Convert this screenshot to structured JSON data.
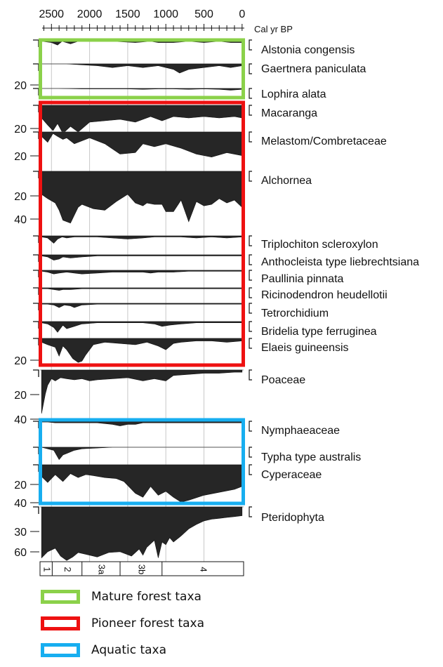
{
  "chart_data": {
    "type": "area",
    "title": "",
    "xlabel": "Cal yr BP",
    "xlim": [
      2650,
      -20
    ],
    "x_ticks": [
      "2500",
      "2000",
      "1500",
      "1000",
      "500",
      "0"
    ],
    "x_tick_values": [
      2500,
      2000,
      1500,
      1000,
      500,
      0
    ],
    "zones": [
      "1",
      "2",
      "3a",
      "3b",
      "4"
    ],
    "zone_boundaries": [
      2490,
      2100,
      1600,
      1050
    ],
    "series": [
      {
        "name": "Alstonia congensis",
        "ticks": [],
        "max": 10,
        "x": [
          2630,
          2500,
          2420,
          2360,
          2250,
          2150,
          2000,
          1700,
          1400,
          1200,
          1100,
          900,
          700,
          500,
          300,
          150,
          0
        ],
        "values": [
          1,
          2,
          4,
          1,
          3,
          1,
          1,
          1,
          2,
          1,
          2,
          2,
          1,
          2,
          1,
          2,
          2
        ]
      },
      {
        "name": "Gaertnera paniculata",
        "ticks": [],
        "max": 10,
        "x": [
          2630,
          2500,
          2300,
          2100,
          1900,
          1700,
          1500,
          1300,
          1100,
          900,
          820,
          700,
          500,
          300,
          150,
          0
        ],
        "values": [
          0,
          0,
          0,
          0.5,
          1,
          2,
          1,
          2,
          1,
          3,
          5,
          3,
          2,
          1,
          2,
          1
        ]
      },
      {
        "name": "Lophira alata",
        "ticks": [
          "20"
        ],
        "max": 20,
        "x": [
          2630,
          2400,
          2100,
          1900,
          1700,
          1500,
          1300,
          1100,
          900,
          700,
          500,
          300,
          150,
          0
        ],
        "values": [
          0,
          0,
          1,
          1,
          1,
          1,
          2,
          1,
          1,
          2,
          1,
          2,
          4,
          2
        ]
      },
      {
        "name": "Macaranga",
        "ticks": [
          "20"
        ],
        "max": 20,
        "x": [
          2630,
          2550,
          2480,
          2420,
          2350,
          2250,
          2150,
          2000,
          1800,
          1600,
          1400,
          1200,
          1050,
          900,
          700,
          500,
          300,
          100,
          0
        ],
        "values": [
          9,
          14,
          18,
          13,
          20,
          15,
          19,
          12,
          11,
          10,
          12,
          8,
          11,
          8,
          9,
          8,
          9,
          8,
          9
        ]
      },
      {
        "name": "Melastom/Combretaceae",
        "ticks": [
          "20"
        ],
        "max": 20,
        "x": [
          2630,
          2550,
          2480,
          2420,
          2350,
          2300,
          2200,
          2100,
          2000,
          1800,
          1600,
          1400,
          1300,
          1150,
          1000,
          800,
          600,
          400,
          200,
          0
        ],
        "values": [
          3,
          7,
          1,
          3,
          5,
          4,
          8,
          6,
          4,
          8,
          15,
          14,
          8,
          10,
          8,
          11,
          15,
          17,
          14,
          16
        ]
      },
      {
        "name": "Alchornea",
        "ticks": [
          "20",
          "40"
        ],
        "max": 40,
        "x": [
          2630,
          2550,
          2450,
          2400,
          2350,
          2250,
          2150,
          2100,
          1950,
          1800,
          1650,
          1500,
          1400,
          1300,
          1250,
          1150,
          1050,
          1000,
          900,
          800,
          700,
          600,
          500,
          400,
          300,
          200,
          100,
          0
        ],
        "values": [
          16,
          19,
          22,
          27,
          34,
          36,
          25,
          23,
          26,
          27,
          21,
          16,
          22,
          24,
          22,
          23,
          23,
          28,
          28,
          20,
          35,
          21,
          24,
          23,
          19,
          22,
          20,
          25
        ]
      },
      {
        "name": "Triplochiton scleroxylon",
        "ticks": [],
        "max": 10,
        "x": [
          2630,
          2550,
          2470,
          2420,
          2360,
          2300,
          2200,
          2100,
          1900,
          1700,
          1500,
          1300,
          1150,
          1000,
          800,
          600,
          400,
          200,
          0
        ],
        "values": [
          1,
          2,
          7,
          3,
          1,
          2,
          1,
          1,
          1,
          2,
          3,
          2,
          1,
          1,
          1,
          2,
          1,
          2,
          1
        ]
      },
      {
        "name": "Anthocleista type liebrechtsiana",
        "ticks": [],
        "max": 10,
        "x": [
          2630,
          2550,
          2470,
          2400,
          2350,
          2250,
          2100,
          1900,
          1700,
          1500,
          1300,
          1100,
          900,
          700,
          500,
          300,
          100,
          0
        ],
        "values": [
          1,
          2,
          5,
          4,
          2,
          3,
          2,
          1,
          1,
          1,
          1,
          1,
          1,
          1,
          1,
          1,
          1,
          1
        ]
      },
      {
        "name": "Paullinia pinnata",
        "ticks": [],
        "max": 10,
        "x": [
          2630,
          2550,
          2470,
          2400,
          2300,
          2200,
          2100,
          1900,
          1700,
          1500,
          1300,
          1200,
          1100,
          900,
          700,
          500,
          300,
          100,
          0
        ],
        "values": [
          1,
          2,
          4,
          3,
          2,
          3,
          4,
          3,
          2,
          2,
          2,
          3,
          2,
          2,
          1,
          1,
          1,
          1,
          1
        ]
      },
      {
        "name": "Ricinodendron heudellotii",
        "ticks": [],
        "max": 10,
        "x": [
          2630,
          2550,
          2470,
          2400,
          2350,
          2250,
          2100,
          1900,
          1700,
          1500,
          1300,
          1100,
          900,
          700,
          500,
          300,
          100,
          0
        ],
        "values": [
          1,
          1,
          2,
          3,
          2,
          2,
          1,
          1,
          1,
          1,
          1,
          1,
          1,
          1,
          1,
          1,
          1,
          1
        ]
      },
      {
        "name": "Tetrorchidium",
        "ticks": [],
        "max": 10,
        "x": [
          2630,
          2550,
          2470,
          2400,
          2330,
          2250,
          2200,
          2100,
          1900,
          1700,
          1500,
          1300,
          1100,
          900,
          700,
          500,
          300,
          100,
          0
        ],
        "values": [
          1,
          1,
          2,
          5,
          2,
          3,
          5,
          2,
          1,
          1,
          1,
          1,
          1,
          1,
          1,
          1,
          1,
          1,
          1
        ]
      },
      {
        "name": "Bridelia type ferruginea",
        "ticks": [],
        "max": 10,
        "x": [
          2630,
          2550,
          2470,
          2420,
          2350,
          2300,
          2200,
          2100,
          1900,
          1700,
          1500,
          1300,
          1150,
          1050,
          950,
          800,
          600,
          400,
          200,
          0
        ],
        "values": [
          1,
          2,
          5,
          9,
          3,
          6,
          4,
          2,
          1,
          1,
          1,
          1,
          2,
          4,
          3,
          2,
          1,
          1,
          1,
          1
        ]
      },
      {
        "name": "Elaeis guineensis",
        "ticks": [
          "20"
        ],
        "max": 20,
        "x": [
          2630,
          2550,
          2450,
          2400,
          2350,
          2300,
          2220,
          2150,
          2100,
          2050,
          1950,
          1800,
          1600,
          1400,
          1250,
          1100,
          1000,
          900,
          800,
          600,
          400,
          200,
          0
        ],
        "values": [
          3,
          5,
          7,
          14,
          6,
          9,
          16,
          19,
          18,
          13,
          5,
          3,
          4,
          5,
          3,
          6,
          9,
          4,
          3,
          2,
          2,
          3,
          2
        ]
      },
      {
        "name": "Poaceae",
        "ticks": [
          "20",
          "40"
        ],
        "max": 40,
        "x": [
          2630,
          2580,
          2550,
          2500,
          2450,
          2380,
          2300,
          2200,
          2100,
          2000,
          1900,
          1700,
          1500,
          1300,
          1150,
          1000,
          900,
          700,
          500,
          300,
          100,
          0
        ],
        "values": [
          40,
          22,
          14,
          8,
          10,
          7,
          8,
          9,
          8,
          10,
          9,
          8,
          7,
          10,
          8,
          10,
          5,
          4,
          3,
          3,
          2,
          2
        ]
      },
      {
        "name": "Nymphaeaceae",
        "ticks": [],
        "max": 10,
        "x": [
          2630,
          2550,
          2450,
          2350,
          2250,
          2100,
          1900,
          1700,
          1600,
          1500,
          1400,
          1300,
          1200,
          1100,
          1000,
          800,
          600,
          400,
          200,
          0
        ],
        "values": [
          0.5,
          0.5,
          1,
          1,
          1,
          1,
          1,
          2,
          3,
          2,
          2,
          1,
          1,
          1,
          1,
          1,
          1,
          1,
          1,
          1
        ]
      },
      {
        "name": "Typha type australis",
        "ticks": [],
        "max": 10,
        "x": [
          2630,
          2550,
          2470,
          2400,
          2350,
          2300,
          2200,
          2100,
          1900,
          1700,
          1500,
          1300,
          1100,
          900,
          700,
          500,
          300,
          100,
          0
        ],
        "values": [
          0,
          1,
          2,
          8,
          5,
          4,
          2,
          1,
          0.5,
          0,
          0,
          0,
          0,
          0,
          0,
          0,
          0,
          0,
          0
        ]
      },
      {
        "name": "Cyperaceae",
        "ticks": [
          "20",
          "40"
        ],
        "max": 40,
        "x": [
          2630,
          2550,
          2450,
          2350,
          2250,
          2150,
          2050,
          1950,
          1800,
          1650,
          1550,
          1400,
          1300,
          1200,
          1100,
          1000,
          900,
          800,
          700,
          500,
          300,
          100,
          0
        ],
        "values": [
          12,
          18,
          10,
          17,
          9,
          13,
          10,
          11,
          13,
          14,
          17,
          29,
          33,
          22,
          31,
          27,
          33,
          38,
          36,
          31,
          28,
          25,
          22
        ]
      },
      {
        "name": "Pteridophyta",
        "ticks": [
          "30",
          "60"
        ],
        "max": 60,
        "x": [
          2630,
          2550,
          2450,
          2380,
          2300,
          2220,
          2150,
          2050,
          1900,
          1750,
          1600,
          1450,
          1350,
          1300,
          1250,
          1150,
          1100,
          1050,
          1000,
          950,
          900,
          800,
          700,
          600,
          500,
          400,
          300,
          200,
          100,
          0
        ],
        "values": [
          58,
          51,
          47,
          56,
          61,
          57,
          52,
          54,
          57,
          52,
          51,
          56,
          48,
          55,
          46,
          38,
          58,
          40,
          43,
          35,
          40,
          33,
          25,
          20,
          16,
          14,
          13,
          12,
          11,
          10
        ]
      }
    ]
  },
  "colors": {
    "mature": "#8bd14a",
    "pioneer": "#ee1111",
    "aquatic": "#17aef0",
    "fill": "#262626"
  },
  "legend": [
    {
      "label": "Mature forest taxa",
      "color": "#8bd14a"
    },
    {
      "label": "Pioneer forest taxa",
      "color": "#ee1111"
    },
    {
      "label": "Aquatic taxa",
      "color": "#17aef0"
    }
  ]
}
